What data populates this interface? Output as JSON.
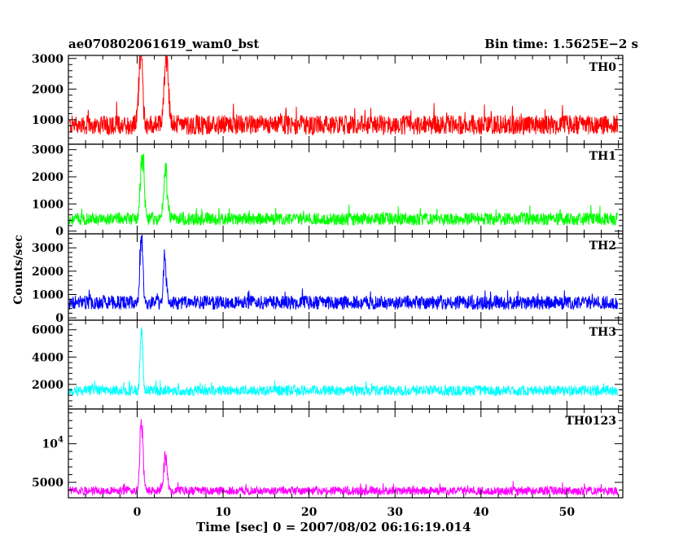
{
  "header": {
    "title": "ae070802061619_wam0_bst",
    "bin_time": "Bin time: 1.5625E−2 s"
  },
  "chart_data": {
    "type": "line",
    "xlabel": "Time [sec] 0 = 2007/08/02 06:16:19.014",
    "ylabel": "Counts/sec",
    "xlim": [
      -8,
      56.5
    ],
    "x_ticks": [
      "0",
      "10",
      "20",
      "30",
      "40",
      "50"
    ],
    "panels": [
      {
        "name": "TH0",
        "color": "#ff0000",
        "ylim": [
          200,
          3100
        ],
        "yticks": [
          1000,
          2000,
          3000
        ],
        "ytick_labels": [
          "1000",
          "2000",
          "3000"
        ],
        "baseline": 830,
        "noise": 320,
        "spikes": [
          {
            "t": 0.4,
            "height": 2500,
            "width": 0.3
          },
          {
            "t": 3.4,
            "height": 2300,
            "width": 0.35
          }
        ]
      },
      {
        "name": "TH1",
        "color": "#00ff00",
        "ylim": [
          -100,
          3200
        ],
        "yticks": [
          0,
          1000,
          2000,
          3000
        ],
        "ytick_labels": [
          "0",
          "1000",
          "2000",
          "3000"
        ],
        "baseline": 450,
        "noise": 230,
        "spikes": [
          {
            "t": 0.6,
            "height": 2450,
            "width": 0.3
          },
          {
            "t": 3.3,
            "height": 1750,
            "width": 0.3
          }
        ]
      },
      {
        "name": "TH2",
        "color": "#0000ff",
        "ylim": [
          -100,
          3600
        ],
        "yticks": [
          0,
          1000,
          2000,
          3000
        ],
        "ytick_labels": [
          "0",
          "1000",
          "2000",
          "3000"
        ],
        "baseline": 650,
        "noise": 300,
        "spikes": [
          {
            "t": 0.5,
            "height": 2800,
            "width": 0.25
          },
          {
            "t": 3.2,
            "height": 1800,
            "width": 0.25
          }
        ]
      },
      {
        "name": "TH3",
        "color": "#00ffff",
        "ylim": [
          200,
          6700
        ],
        "yticks": [
          2000,
          4000,
          6000
        ],
        "ytick_labels": [
          "2000",
          "4000",
          "6000"
        ],
        "baseline": 1550,
        "noise": 380,
        "spikes": [
          {
            "t": 0.5,
            "height": 5000,
            "width": 0.2
          }
        ]
      },
      {
        "name": "TH0123",
        "color": "#ff00ff",
        "ylim": [
          3000,
          14500
        ],
        "yticks": [
          5000,
          10000
        ],
        "ytick_labels": [
          "5000",
          "10⁴"
        ],
        "baseline": 3900,
        "noise": 550,
        "spikes": [
          {
            "t": 0.5,
            "height": 9600,
            "width": 0.25
          },
          {
            "t": 3.3,
            "height": 4300,
            "width": 0.3
          }
        ]
      }
    ]
  }
}
